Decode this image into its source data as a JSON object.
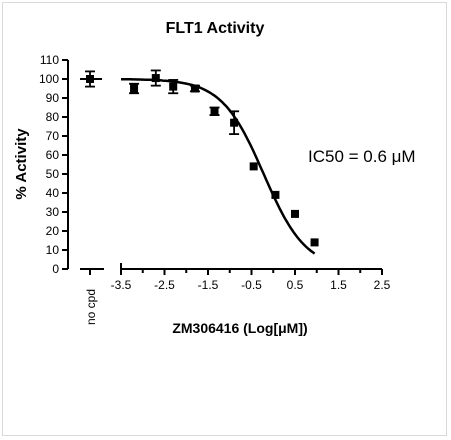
{
  "chart_data": {
    "type": "scatter",
    "title": "FLT1 Activity",
    "xlabel": "ZM306416 (Log[μM])",
    "ylabel": "% Activity",
    "annotation": "IC50 = 0.6 μM",
    "control_label": "no cpd",
    "xlim": [
      -3.5,
      2.5
    ],
    "ylim": [
      0,
      110
    ],
    "x_ticks": [
      "-3.5",
      "-2.5",
      "-1.5",
      "-0.5",
      "0.5",
      "1.5",
      "2.5"
    ],
    "y_ticks": [
      "0",
      "10",
      "20",
      "30",
      "40",
      "50",
      "60",
      "70",
      "80",
      "90",
      "100",
      "110"
    ],
    "control_point": {
      "y": 100,
      "err": 4
    },
    "series": [
      {
        "points": [
          {
            "x": -3.2,
            "y": 95,
            "err": 2.5
          },
          {
            "x": -2.7,
            "y": 100.5,
            "err": 4
          },
          {
            "x": -2.3,
            "y": 96,
            "err": 3.5
          },
          {
            "x": -1.8,
            "y": 95,
            "err": 1.5
          },
          {
            "x": -1.35,
            "y": 83,
            "err": 2
          },
          {
            "x": -0.9,
            "y": 77,
            "err": 6
          },
          {
            "x": -0.45,
            "y": 54,
            "err": 0
          },
          {
            "x": 0.05,
            "y": 39,
            "err": 0
          },
          {
            "x": 0.5,
            "y": 29,
            "err": 0
          },
          {
            "x": 0.95,
            "y": 14,
            "err": 0
          }
        ]
      }
    ],
    "fit_curve": {
      "top": 100,
      "bottom": 0,
      "log_ic50": -0.22,
      "hill": 0.9,
      "x_range": [
        -3.5,
        0.95
      ]
    },
    "colors": {
      "markers": "#000000",
      "axes": "#000000",
      "frame": "#d9d9d9"
    }
  }
}
